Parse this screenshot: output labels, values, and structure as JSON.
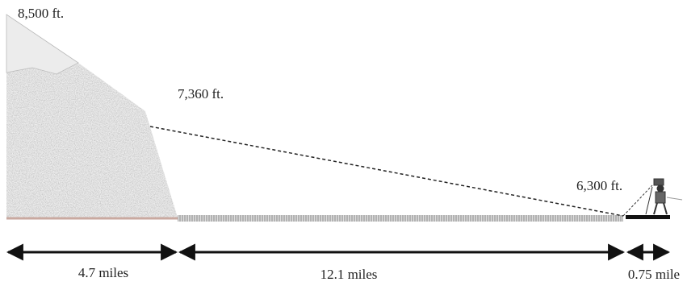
{
  "labels": {
    "peak": "8,500 ft.",
    "ridge": "7,360 ft.",
    "observer": "6,300 ft."
  },
  "distances": {
    "mountain": "4.7 miles",
    "valley": "12.1 miles",
    "observer": "0.75 mile"
  }
}
